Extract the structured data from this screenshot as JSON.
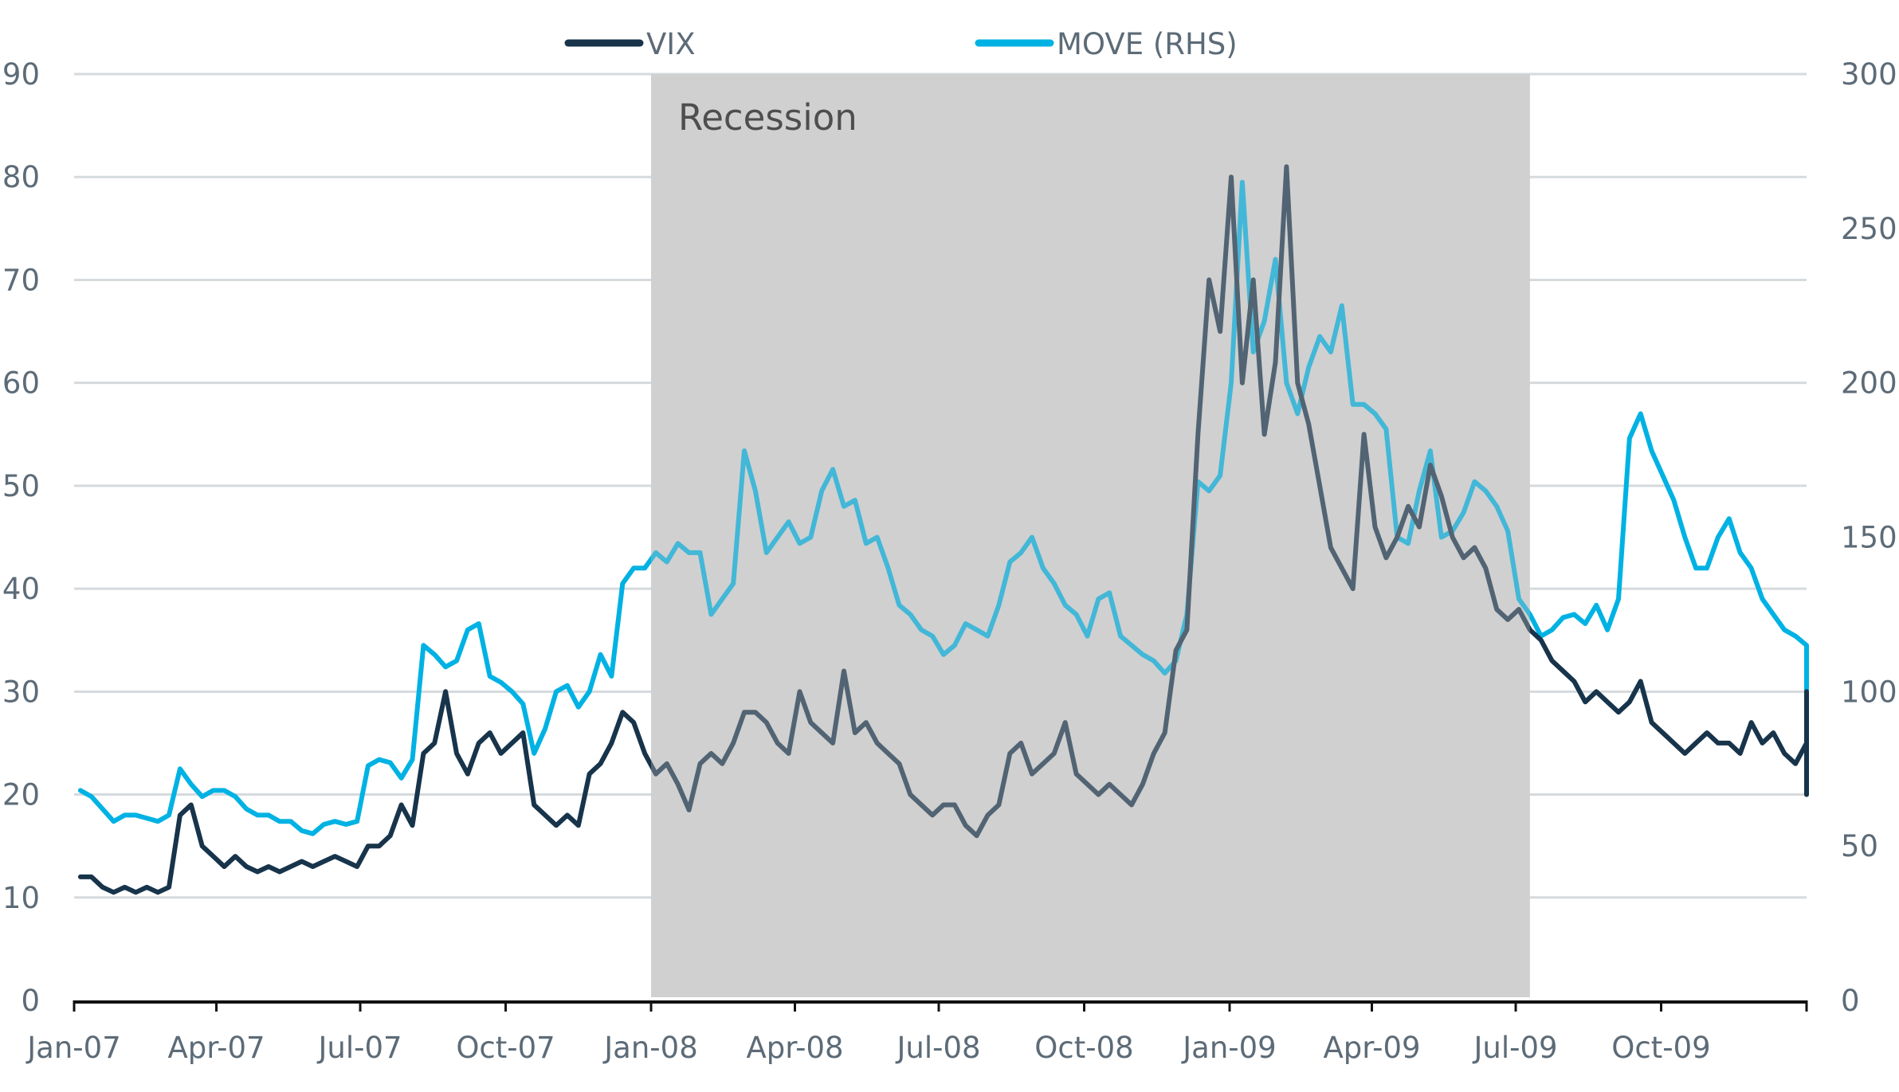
{
  "chart_data": {
    "type": "line",
    "title": "",
    "xlabel": "",
    "ylabel": "",
    "y2label": "",
    "x_range": [
      "2007-01-01",
      "2010-01-01"
    ],
    "x_ticks": [
      "Jan-07",
      "Apr-07",
      "Jul-07",
      "Oct-07",
      "Jan-08",
      "Apr-08",
      "Jul-08",
      "Oct-08",
      "Jan-09",
      "Apr-09",
      "Jul-09",
      "Oct-09"
    ],
    "y_left": {
      "min": 0,
      "max": 90,
      "step": 10,
      "ticks": [
        "0",
        "10",
        "20",
        "30",
        "40",
        "50",
        "60",
        "70",
        "80",
        "90"
      ]
    },
    "y_right": {
      "min": 0,
      "max": 300,
      "step": 50,
      "ticks": [
        "0",
        "50",
        "100",
        "150",
        "200",
        "250",
        "300"
      ]
    },
    "grid": true,
    "legend": {
      "placement": "top-center",
      "entries": [
        "VIX",
        "MOVE (RHS)"
      ]
    },
    "shaded_regions": [
      {
        "label": "Recession",
        "start": "2008-01-01",
        "end": "2009-07-10",
        "color": "#D9D9D9"
      }
    ],
    "frequency": "weekly",
    "start_date": "2007-01-05",
    "series": [
      {
        "name": "VIX",
        "axis": "left",
        "color": "#17344B",
        "color_in_band": "#566573",
        "values": [
          12,
          12,
          11,
          10.5,
          11,
          10.5,
          11,
          10.5,
          11,
          18,
          19,
          15,
          14,
          13,
          14,
          13,
          12.5,
          13,
          12.5,
          13,
          13.5,
          13,
          13.5,
          14,
          13.5,
          13,
          15,
          15,
          16,
          19,
          17,
          24,
          25,
          30,
          24,
          22,
          25,
          26,
          24,
          25,
          26,
          19,
          18,
          17,
          18,
          17,
          22,
          23,
          25,
          28,
          27,
          24,
          22,
          23,
          21,
          18.5,
          23,
          24,
          23,
          25,
          28,
          28,
          27,
          25,
          24,
          30,
          27,
          26,
          25,
          32,
          26,
          27,
          25,
          24,
          23,
          20,
          19,
          18,
          19,
          19,
          17,
          16,
          18,
          19,
          24,
          25,
          22,
          23,
          24,
          27,
          22,
          21,
          20,
          21,
          20,
          19,
          21,
          24,
          26,
          34,
          36,
          55,
          70,
          65,
          80,
          60,
          70,
          55,
          62,
          81,
          60,
          56,
          50,
          44,
          42,
          40,
          55,
          46,
          43,
          45,
          48,
          46,
          52,
          49,
          45,
          43,
          44,
          42,
          38,
          37,
          38,
          36,
          35,
          33,
          32,
          31,
          29,
          30,
          29,
          28,
          29,
          31,
          27,
          26,
          25,
          24,
          25,
          26,
          25,
          25,
          24,
          27,
          25,
          26,
          24,
          23,
          25,
          24,
          24,
          28,
          25,
          24,
          23,
          22,
          24,
          22,
          21,
          30,
          23,
          21,
          22,
          21,
          20,
          21.5
        ]
      },
      {
        "name": "MOVE (RHS)",
        "axis": "right",
        "color": "#00B2E3",
        "color_in_band": "#4AAFCF",
        "values": [
          68,
          66,
          62,
          58,
          60,
          60,
          59,
          58,
          60,
          75,
          70,
          66,
          68,
          68,
          66,
          62,
          60,
          60,
          58,
          58,
          55,
          54,
          57,
          58,
          57,
          58,
          76,
          78,
          77,
          72,
          78,
          115,
          112,
          108,
          110,
          120,
          122,
          105,
          103,
          100,
          96,
          80,
          88,
          100,
          102,
          95,
          100,
          112,
          105,
          135,
          140,
          140,
          145,
          142,
          148,
          145,
          145,
          125,
          130,
          135,
          178,
          165,
          145,
          150,
          155,
          148,
          150,
          165,
          172,
          160,
          162,
          148,
          150,
          140,
          128,
          125,
          120,
          118,
          112,
          115,
          122,
          120,
          118,
          128,
          142,
          145,
          150,
          140,
          135,
          128,
          125,
          118,
          130,
          132,
          118,
          115,
          112,
          110,
          106,
          110,
          125,
          168,
          165,
          170,
          200,
          265,
          210,
          220,
          240,
          200,
          190,
          205,
          215,
          210,
          225,
          193,
          193,
          190,
          185,
          150,
          148,
          165,
          178,
          150,
          152,
          158,
          168,
          165,
          160,
          152,
          130,
          125,
          118,
          120,
          124,
          125,
          122,
          128,
          120,
          130,
          182,
          190,
          178,
          170,
          162,
          150,
          140,
          140,
          150,
          156,
          145,
          140,
          130,
          125,
          120,
          118,
          115,
          112,
          108,
          112,
          110,
          104,
          100,
          98,
          96,
          90,
          88,
          92,
          95,
          96,
          103,
          108,
          106
        ]
      }
    ]
  }
}
